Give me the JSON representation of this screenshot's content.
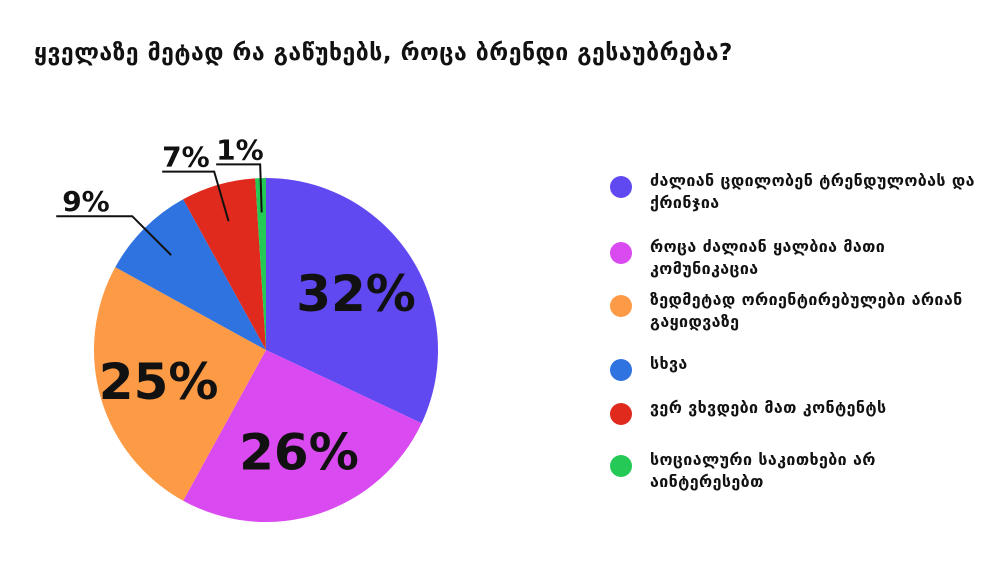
{
  "chart_data": {
    "type": "pie",
    "title": "ყველაზე მეტად რა გაწუხებს, როცა ბრენდი გესაუბრება?",
    "categories": [
      "ძალიან ცდილობენ ტრენდულობას და ქრინჯია",
      "როცა ძალიან ყალბია მათი კომუნიკაცია",
      "ზედმეტად ორიენტირებულები არიან გაყიდვაზე",
      "სხვა",
      "ვერ ვხვდები მათ კონტენტს",
      "სოციალური საკითხები არ აინტერესებთ"
    ],
    "values": [
      32,
      26,
      25,
      9,
      7,
      1
    ],
    "data_labels": [
      "32%",
      "26%",
      "25%",
      "9%",
      "7%",
      "1%"
    ],
    "colors": [
      "#6149F2",
      "#D94AF0",
      "#FC9A45",
      "#2E73DF",
      "#E02A1D",
      "#25C955"
    ],
    "start": "12 o'clock",
    "direction": "clockwise",
    "legend_position": "right"
  }
}
